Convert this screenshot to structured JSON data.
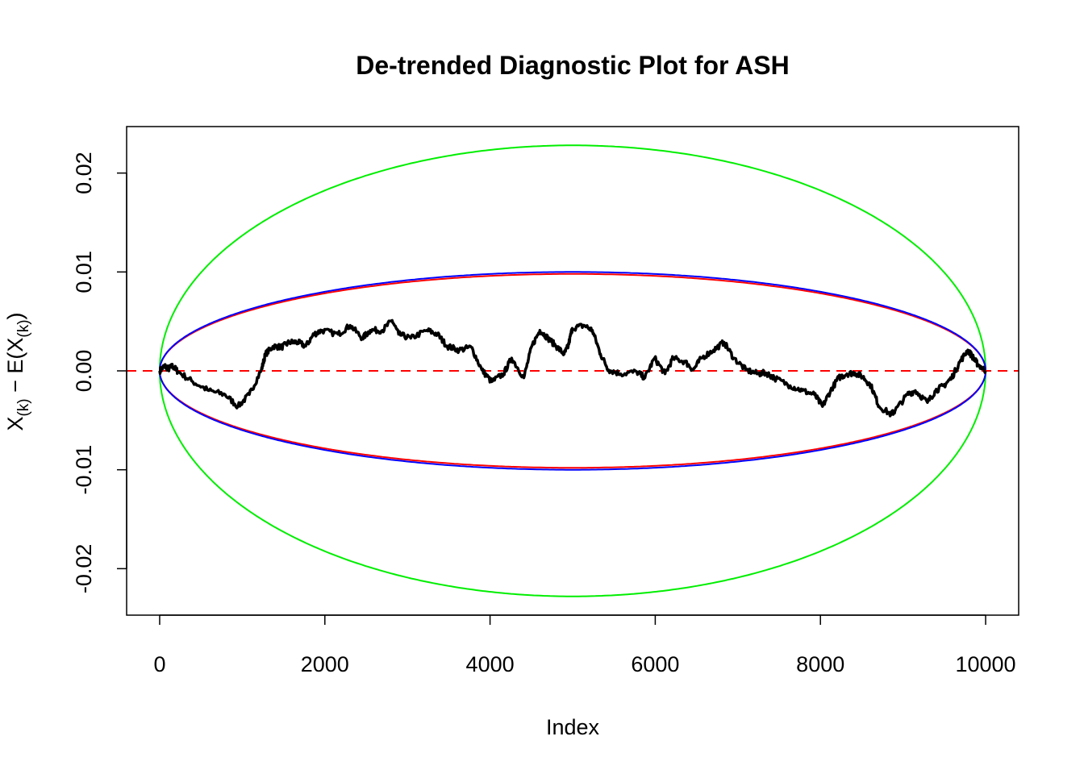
{
  "chart_data": {
    "type": "line",
    "title": "De-trended Diagnostic Plot for ASH",
    "xlabel": "Index",
    "ylabel": {
      "main": "X",
      "sub1": "(k)",
      "mid": " − E(X",
      "sub2": "(k)",
      "end": ")"
    },
    "xlim": [
      -400,
      10400
    ],
    "ylim": [
      -0.0247,
      0.0247
    ],
    "xticks": [
      0,
      2000,
      4000,
      6000,
      8000,
      10000
    ],
    "xtick_labels": [
      "0",
      "2000",
      "4000",
      "6000",
      "8000",
      "10000"
    ],
    "yticks": [
      -0.02,
      -0.01,
      0,
      0.01,
      0.02
    ],
    "ytick_labels": [
      "-0.02",
      "-0.01",
      "0.00",
      "0.01",
      "0.02"
    ],
    "grid": false,
    "reference_line": {
      "y": 0,
      "color": "#ff0000",
      "style": "dashed"
    },
    "envelopes": [
      {
        "color": "#00ee00",
        "amplitude": 0.0228,
        "x_range": [
          0,
          10000
        ]
      },
      {
        "color": "#ff0000",
        "amplitude": 0.0098,
        "x_range": [
          0,
          10000
        ]
      },
      {
        "color": "#0000ff",
        "amplitude": 0.01,
        "x_range": [
          0,
          10000
        ]
      }
    ],
    "series": [
      {
        "color": "#000000",
        "x": [
          0,
          59,
          108,
          156,
          225,
          401,
          596,
          792,
          948,
          1085,
          1232,
          1281,
          1378,
          1476,
          1574,
          1672,
          1769,
          1867,
          1965,
          2160,
          2307,
          2454,
          2551,
          2698,
          2815,
          2893,
          3040,
          3236,
          3363,
          3480,
          3627,
          3773,
          3900,
          4018,
          4164,
          4262,
          4409,
          4506,
          4604,
          4702,
          4800,
          4897,
          4946,
          4995,
          5142,
          5239,
          5337,
          5435,
          5582,
          5777,
          5875,
          5992,
          6119,
          6217,
          6364,
          6461,
          6559,
          6706,
          6833,
          6950,
          7097,
          7243,
          7341,
          7439,
          7634,
          7781,
          7928,
          8025,
          8123,
          8221,
          8319,
          8416,
          8514,
          8612,
          8710,
          8856,
          8905,
          9052,
          9149,
          9296,
          9394,
          9492,
          9589,
          9687,
          9785,
          9853,
          9902,
          10000
        ],
        "y": [
          0,
          0.0005,
          0.0002,
          0.0005,
          -0.0001,
          -0.0011,
          -0.002,
          -0.0024,
          -0.0036,
          -0.0024,
          0.0001,
          0.0017,
          0.0025,
          0.0024,
          0.0029,
          0.0029,
          0.0025,
          0.0037,
          0.0041,
          0.0037,
          0.0046,
          0.0033,
          0.0041,
          0.0041,
          0.0051,
          0.0037,
          0.0033,
          0.0041,
          0.0037,
          0.0025,
          0.0021,
          0.0024,
          0.0001,
          -0.0011,
          -0.0003,
          0.0013,
          -0.0007,
          0.0025,
          0.0041,
          0.0033,
          0.0025,
          0.0017,
          0.0025,
          0.0043,
          0.0046,
          0.0041,
          0.0017,
          0.0001,
          -0.0003,
          -0.0001,
          -0.0007,
          0.0013,
          -0.0003,
          0.0013,
          0.0009,
          0.0001,
          0.0013,
          0.0021,
          0.0029,
          0.0013,
          0.0001,
          -0.0003,
          -0.0002,
          -0.0007,
          -0.0015,
          -0.002,
          -0.0024,
          -0.0036,
          -0.002,
          -0.0007,
          -0.0003,
          -0.0002,
          -0.0006,
          -0.0015,
          -0.0036,
          -0.0044,
          -0.004,
          -0.0024,
          -0.002,
          -0.0032,
          -0.002,
          -0.0015,
          -0.0007,
          0.0009,
          0.0021,
          0.0013,
          0.0007,
          0
        ]
      }
    ]
  }
}
